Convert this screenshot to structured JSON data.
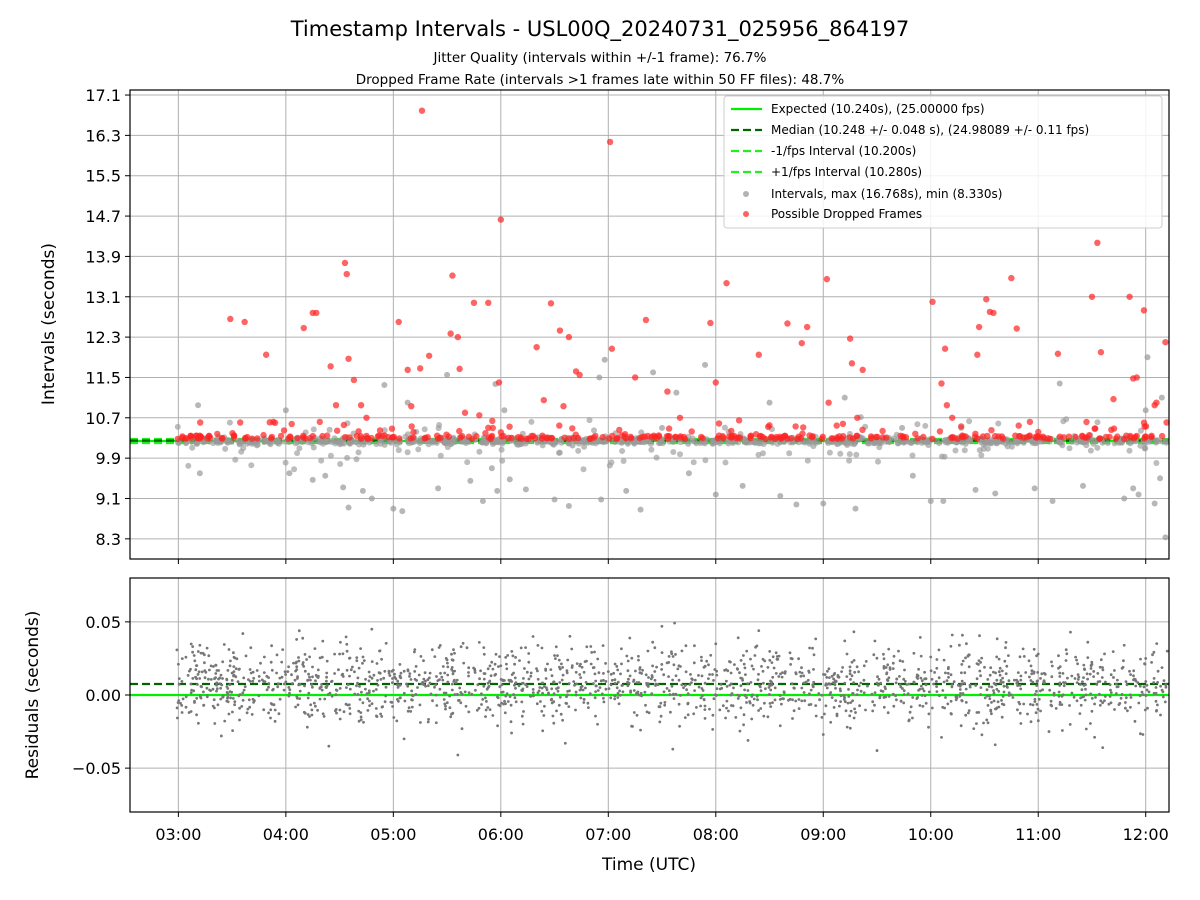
{
  "title": "Timestamp Intervals - USL00Q_20240731_025956_864197",
  "subtitle_1": "Jitter Quality (intervals within +/-1 frame): 76.7%",
  "subtitle_2": "Dropped Frame Rate (intervals >1 frames late within 50 FF files): 48.7%",
  "colors": {
    "expected": "#00ee00",
    "median": "#006400",
    "fps_band": "#22ee22",
    "intervals": "#999999",
    "dropped": "#ff2222",
    "residuals": "#777777",
    "grid": "#b0b0b0"
  },
  "chart_data": [
    {
      "type": "scatter",
      "ylabel": "Intervals (seconds)",
      "ylim": [
        7.9,
        17.2
      ],
      "xlim": [
        "02:33",
        "12:13"
      ],
      "yticks": [
        "17.1",
        "16.3",
        "15.5",
        "14.7",
        "13.9",
        "13.1",
        "12.3",
        "11.5",
        "10.7",
        "9.9",
        "9.1",
        "8.3"
      ],
      "grid": true,
      "legend_position": "upper-right",
      "legend": [
        "Expected (10.240s), (25.00000 fps)",
        "Median (10.248 +/- 0.048 s), (24.98089 +/- 0.11 fps)",
        "-1/fps Interval (10.200s)",
        "+1/fps Interval (10.280s)",
        "Intervals, max (16.768s), min (8.330s)",
        "Possible Dropped Frames"
      ],
      "reference_lines": {
        "expected": 10.24,
        "median": 10.248,
        "minus_1fps": 10.2,
        "plus_1fps": 10.28
      },
      "dropped_frames": [
        [
          "03:29",
          12.66
        ],
        [
          "03:37",
          12.6
        ],
        [
          "03:49",
          11.95
        ],
        [
          "03:53",
          10.62
        ],
        [
          "03:59",
          10.45
        ],
        [
          "04:10",
          12.48
        ],
        [
          "04:15",
          12.78
        ],
        [
          "04:17",
          12.78
        ],
        [
          "04:25",
          11.72
        ],
        [
          "04:28",
          10.95
        ],
        [
          "04:33",
          13.77
        ],
        [
          "04:34",
          13.55
        ],
        [
          "04:35",
          11.87
        ],
        [
          "04:38",
          11.45
        ],
        [
          "04:42",
          10.95
        ],
        [
          "04:45",
          10.7
        ],
        [
          "05:03",
          12.6
        ],
        [
          "05:08",
          11.65
        ],
        [
          "05:10",
          10.93
        ],
        [
          "05:15",
          11.68
        ],
        [
          "05:16",
          16.79
        ],
        [
          "05:20",
          11.93
        ],
        [
          "05:32",
          12.37
        ],
        [
          "05:33",
          13.52
        ],
        [
          "05:36",
          12.3
        ],
        [
          "05:37",
          11.67
        ],
        [
          "05:40",
          10.8
        ],
        [
          "05:45",
          12.98
        ],
        [
          "05:48",
          10.75
        ],
        [
          "05:53",
          12.98
        ],
        [
          "05:59",
          11.4
        ],
        [
          "06:00",
          14.63
        ],
        [
          "06:20",
          12.1
        ],
        [
          "06:24",
          11.05
        ],
        [
          "06:28",
          12.97
        ],
        [
          "06:33",
          12.43
        ],
        [
          "06:35",
          10.93
        ],
        [
          "06:38",
          12.3
        ],
        [
          "06:42",
          11.62
        ],
        [
          "06:44",
          11.55
        ],
        [
          "07:01",
          16.17
        ],
        [
          "07:02",
          12.07
        ],
        [
          "07:15",
          11.5
        ],
        [
          "07:21",
          12.64
        ],
        [
          "07:33",
          11.22
        ],
        [
          "07:40",
          10.7
        ],
        [
          "07:57",
          12.58
        ],
        [
          "08:00",
          11.4
        ],
        [
          "08:06",
          13.37
        ],
        [
          "08:13",
          10.65
        ],
        [
          "08:24",
          11.95
        ],
        [
          "08:30",
          10.55
        ],
        [
          "08:40",
          12.57
        ],
        [
          "08:48",
          12.18
        ],
        [
          "08:51",
          12.5
        ],
        [
          "09:02",
          13.45
        ],
        [
          "09:03",
          11.0
        ],
        [
          "09:15",
          12.27
        ],
        [
          "09:16",
          11.78
        ],
        [
          "09:19",
          10.7
        ],
        [
          "09:22",
          11.65
        ],
        [
          "10:01",
          13.0
        ],
        [
          "10:06",
          11.38
        ],
        [
          "10:08",
          12.07
        ],
        [
          "10:09",
          10.95
        ],
        [
          "10:12",
          10.7
        ],
        [
          "10:26",
          11.95
        ],
        [
          "10:27",
          12.5
        ],
        [
          "10:31",
          13.05
        ],
        [
          "10:33",
          12.8
        ],
        [
          "10:35",
          12.78
        ],
        [
          "10:45",
          13.47
        ],
        [
          "10:48",
          12.47
        ],
        [
          "11:11",
          11.97
        ],
        [
          "11:30",
          13.1
        ],
        [
          "11:33",
          14.17
        ],
        [
          "11:35",
          12.0
        ],
        [
          "11:42",
          11.07
        ],
        [
          "11:51",
          13.1
        ],
        [
          "11:53",
          11.48
        ],
        [
          "11:55",
          11.5
        ],
        [
          "11:59",
          12.83
        ],
        [
          "12:05",
          10.95
        ],
        [
          "12:06",
          11.0
        ],
        [
          "12:11",
          12.2
        ]
      ],
      "interval_outliers": [
        [
          "03:11",
          10.95
        ],
        [
          "03:12",
          9.6
        ],
        [
          "03:51",
          10.2
        ],
        [
          "04:00",
          10.85
        ],
        [
          "04:02",
          9.6
        ],
        [
          "04:15",
          9.47
        ],
        [
          "04:22",
          9.55
        ],
        [
          "04:32",
          9.32
        ],
        [
          "04:35",
          8.92
        ],
        [
          "04:43",
          9.25
        ],
        [
          "04:48",
          9.1
        ],
        [
          "04:55",
          11.35
        ],
        [
          "05:00",
          8.9
        ],
        [
          "05:05",
          8.85
        ],
        [
          "05:08",
          11.0
        ],
        [
          "05:25",
          9.3
        ],
        [
          "05:30",
          11.55
        ],
        [
          "05:43",
          9.45
        ],
        [
          "05:50",
          9.05
        ],
        [
          "05:55",
          9.7
        ],
        [
          "05:57",
          11.37
        ],
        [
          "05:58",
          9.25
        ],
        [
          "06:02",
          10.85
        ],
        [
          "06:05",
          9.48
        ],
        [
          "06:14",
          9.28
        ],
        [
          "06:30",
          9.08
        ],
        [
          "06:38",
          8.95
        ],
        [
          "06:40",
          10.15
        ],
        [
          "06:55",
          11.5
        ],
        [
          "06:56",
          9.08
        ],
        [
          "06:58",
          11.85
        ],
        [
          "07:10",
          9.25
        ],
        [
          "07:18",
          8.88
        ],
        [
          "07:25",
          11.6
        ],
        [
          "07:30",
          10.5
        ],
        [
          "07:38",
          11.2
        ],
        [
          "07:45",
          9.6
        ],
        [
          "07:54",
          11.75
        ],
        [
          "07:58",
          10.2
        ],
        [
          "08:00",
          9.18
        ],
        [
          "08:15",
          9.35
        ],
        [
          "08:30",
          11.0
        ],
        [
          "08:36",
          9.15
        ],
        [
          "08:45",
          8.98
        ],
        [
          "09:00",
          9.0
        ],
        [
          "09:12",
          11.1
        ],
        [
          "09:18",
          8.9
        ],
        [
          "09:44",
          10.5
        ],
        [
          "09:50",
          9.55
        ],
        [
          "10:00",
          9.05
        ],
        [
          "10:07",
          9.05
        ],
        [
          "10:17",
          10.5
        ],
        [
          "10:25",
          9.27
        ],
        [
          "10:36",
          9.2
        ],
        [
          "10:58",
          9.3
        ],
        [
          "11:08",
          9.05
        ],
        [
          "11:12",
          11.38
        ],
        [
          "11:25",
          9.35
        ],
        [
          "11:48",
          9.1
        ],
        [
          "11:53",
          9.3
        ],
        [
          "11:56",
          9.18
        ],
        [
          "12:00",
          10.85
        ],
        [
          "12:01",
          11.9
        ],
        [
          "12:05",
          9.0
        ],
        [
          "12:08",
          9.5
        ],
        [
          "12:09",
          11.1
        ],
        [
          "12:11",
          8.33
        ]
      ]
    },
    {
      "type": "scatter",
      "xlabel": "Time (UTC)",
      "ylabel": "Residuals (seconds)",
      "ylim": [
        -0.08,
        0.08
      ],
      "yticks": [
        "0.05",
        "0.00",
        "−0.05"
      ],
      "xticks": [
        "03:00",
        "04:00",
        "05:00",
        "06:00",
        "07:00",
        "08:00",
        "09:00",
        "10:00",
        "11:00",
        "12:00"
      ],
      "grid": true,
      "reference_lines": {
        "expected": 0.0,
        "median": 0.0075
      },
      "points": [
        [
          "03:00",
          0.021
        ],
        [
          "03:06",
          -0.012
        ],
        [
          "03:12",
          0.034
        ],
        [
          "03:18",
          0.003
        ],
        [
          "03:24",
          -0.028
        ],
        [
          "03:30",
          0.015
        ],
        [
          "03:36",
          0.042
        ],
        [
          "03:42",
          -0.005
        ],
        [
          "03:48",
          0.026
        ],
        [
          "03:54",
          -0.018
        ],
        [
          "04:00",
          0.009
        ],
        [
          "04:06",
          0.038
        ],
        [
          "04:12",
          -0.022
        ],
        [
          "04:18",
          0.012
        ],
        [
          "04:24",
          -0.035
        ],
        [
          "04:30",
          0.028
        ],
        [
          "04:36",
          0.004
        ],
        [
          "04:42",
          -0.015
        ],
        [
          "04:48",
          0.045
        ],
        [
          "04:54",
          -0.008
        ],
        [
          "05:00",
          0.017
        ],
        [
          "05:06",
          -0.03
        ],
        [
          "05:12",
          0.031
        ],
        [
          "05:18",
          0.006
        ],
        [
          "05:24",
          -0.019
        ],
        [
          "05:30",
          0.024
        ],
        [
          "05:36",
          -0.041
        ],
        [
          "05:42",
          0.013
        ],
        [
          "05:48",
          0.036
        ],
        [
          "05:54",
          -0.01
        ],
        [
          "06:00",
          0.02
        ],
        [
          "06:06",
          -0.026
        ],
        [
          "06:12",
          0.008
        ],
        [
          "06:18",
          0.04
        ],
        [
          "06:24",
          -0.014
        ],
        [
          "06:30",
          0.027
        ],
        [
          "06:36",
          -0.033
        ],
        [
          "06:42",
          0.002
        ],
        [
          "06:48",
          0.033
        ],
        [
          "06:54",
          -0.02
        ],
        [
          "07:00",
          0.016
        ],
        [
          "07:06",
          -0.006
        ],
        [
          "07:12",
          0.039
        ],
        [
          "07:18",
          -0.024
        ],
        [
          "07:24",
          0.011
        ],
        [
          "07:30",
          0.029
        ],
        [
          "07:36",
          -0.037
        ],
        [
          "07:42",
          0.005
        ],
        [
          "07:48",
          0.022
        ],
        [
          "07:54",
          -0.016
        ],
        [
          "08:00",
          0.035
        ],
        [
          "08:06",
          -0.009
        ],
        [
          "08:12",
          0.018
        ],
        [
          "08:18",
          -0.031
        ],
        [
          "08:24",
          0.044
        ],
        [
          "08:30",
          0.007
        ],
        [
          "08:36",
          -0.021
        ],
        [
          "08:42",
          0.025
        ],
        [
          "08:48",
          -0.004
        ],
        [
          "08:54",
          0.032
        ],
        [
          "09:00",
          -0.027
        ],
        [
          "09:06",
          0.014
        ],
        [
          "09:12",
          0.037
        ],
        [
          "09:18",
          -0.012
        ],
        [
          "09:24",
          0.023
        ],
        [
          "09:30",
          -0.038
        ],
        [
          "09:36",
          0.01
        ],
        [
          "09:42",
          0.03
        ],
        [
          "09:48",
          -0.017
        ],
        [
          "09:54",
          0.004
        ],
        [
          "10:00",
          0.026
        ],
        [
          "10:06",
          -0.029
        ],
        [
          "10:12",
          0.041
        ],
        [
          "10:18",
          0.001
        ],
        [
          "10:24",
          -0.023
        ],
        [
          "10:30",
          0.019
        ],
        [
          "10:36",
          -0.034
        ],
        [
          "10:42",
          0.036
        ],
        [
          "10:48",
          0.008
        ],
        [
          "10:54",
          -0.013
        ],
        [
          "11:00",
          0.028
        ],
        [
          "11:06",
          -0.025
        ],
        [
          "11:12",
          0.015
        ],
        [
          "11:18",
          0.043
        ],
        [
          "11:24",
          -0.007
        ],
        [
          "11:30",
          0.021
        ],
        [
          "11:36",
          -0.036
        ],
        [
          "11:42",
          0.012
        ],
        [
          "11:48",
          0.034
        ],
        [
          "11:54",
          -0.018
        ],
        [
          "12:00",
          0.025
        ],
        [
          "12:06",
          -0.011
        ],
        [
          "12:12",
          0.03
        ]
      ]
    }
  ]
}
